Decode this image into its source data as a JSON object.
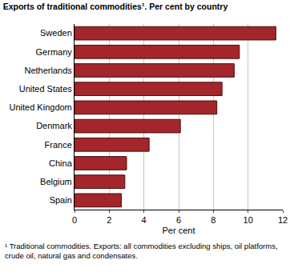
{
  "chart_data": {
    "type": "bar",
    "orientation": "horizontal",
    "title": "Exports of traditional commodities¹. Per cent by country",
    "x_label": "Per cent",
    "note": "¹ Traditional commodities. Exports: all commodities excluding ships, oil platforms, crude oil, natural gas and condensates.",
    "categories": [
      "Sweden",
      "Germany",
      "Netherlands",
      "United States",
      "United Kingdom",
      "Denmark",
      "France",
      "China",
      "Belgium",
      "Spain"
    ],
    "values": [
      11.6,
      9.5,
      9.2,
      8.5,
      8.2,
      6.1,
      4.3,
      3.0,
      2.9,
      2.7
    ],
    "color": "#a3262a",
    "xlim": [
      0,
      12
    ],
    "xticks": [
      0,
      2,
      4,
      6,
      8,
      10,
      12
    ],
    "grid": true
  }
}
